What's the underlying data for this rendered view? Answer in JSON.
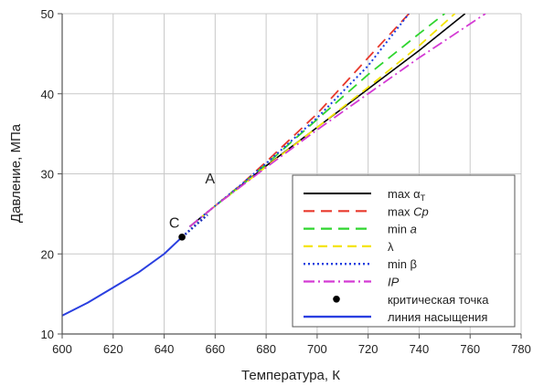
{
  "chart_data": {
    "type": "line",
    "title": "",
    "xlabel": "Температура, К",
    "ylabel": "Давление, МПа",
    "xlim": [
      600,
      780
    ],
    "ylim": [
      10,
      50
    ],
    "xticks": [
      600,
      620,
      640,
      660,
      680,
      700,
      720,
      740,
      760,
      780
    ],
    "yticks": [
      10,
      20,
      30,
      40,
      50
    ],
    "grid": true,
    "legend_position": "bottom-right",
    "series": [
      {
        "name": "max αT",
        "legend_main": "max α",
        "legend_sub": "T",
        "color": "#000000",
        "dash": "",
        "width": 1.6,
        "x": [
          650,
          660,
          670,
          680,
          700,
          720,
          740,
          758
        ],
        "y": [
          23.4,
          26.0,
          28.5,
          31.0,
          35.8,
          40.6,
          45.4,
          50.0
        ]
      },
      {
        "name": "max Cp",
        "legend_main": "max ",
        "legend_italic": "Cp",
        "color": "#e8392c",
        "dash": "12,7",
        "width": 1.8,
        "x": [
          650,
          660,
          670,
          680,
          700,
          720,
          736
        ],
        "y": [
          23.4,
          26.0,
          28.6,
          31.5,
          37.5,
          44.5,
          50.0
        ]
      },
      {
        "name": "min a",
        "legend_main": "min ",
        "legend_italic": "a",
        "color": "#2fd52f",
        "dash": "12,7",
        "width": 1.8,
        "x": [
          650,
          660,
          670,
          680,
          700,
          720,
          740,
          750
        ],
        "y": [
          23.4,
          26.0,
          28.5,
          31.2,
          36.8,
          42.4,
          47.5,
          50.0
        ]
      },
      {
        "name": "λ",
        "legend_main": "λ",
        "color": "#f5e400",
        "dash": "10,6",
        "width": 1.8,
        "x": [
          650,
          660,
          670,
          680,
          700,
          720,
          740,
          754
        ],
        "y": [
          23.4,
          26.0,
          28.4,
          30.9,
          35.8,
          40.8,
          46.0,
          50.0
        ]
      },
      {
        "name": "min β",
        "legend_main": "min β",
        "color": "#1c3ee0",
        "dash": "2,3",
        "width": 2.0,
        "x": [
          650,
          660,
          670,
          680,
          700,
          720,
          736
        ],
        "y": [
          23.4,
          26.0,
          28.6,
          31.3,
          37.0,
          43.5,
          50.0
        ]
      },
      {
        "name": "IP",
        "legend_italic": "IP",
        "color": "#d43ad4",
        "dash": "12,4,2,4",
        "width": 1.8,
        "x": [
          650,
          660,
          670,
          680,
          700,
          720,
          740,
          766
        ],
        "y": [
          23.4,
          26.0,
          28.4,
          30.8,
          35.5,
          40.0,
          44.5,
          50.0
        ]
      },
      {
        "name": "критическая точка",
        "legend_main": "критическая точка",
        "type": "point",
        "color": "#000000",
        "x": [
          647
        ],
        "y": [
          22.1
        ]
      },
      {
        "name": "линия насыщения",
        "legend_main": "линия насыщения",
        "color": "#2a3fe0",
        "dash": "",
        "width": 2.0,
        "x": [
          600,
          610,
          620,
          630,
          640,
          647
        ],
        "y": [
          12.3,
          13.9,
          15.8,
          17.7,
          20.0,
          22.1
        ]
      }
    ],
    "critical_extension": {
      "color": "#1a2fb8",
      "x": [
        647,
        657
      ],
      "y": [
        22.1,
        24.9
      ]
    },
    "annotations": [
      {
        "text": "A",
        "x": 658,
        "y": 28.8
      },
      {
        "text": "C",
        "x": 644,
        "y": 23.3
      }
    ]
  }
}
